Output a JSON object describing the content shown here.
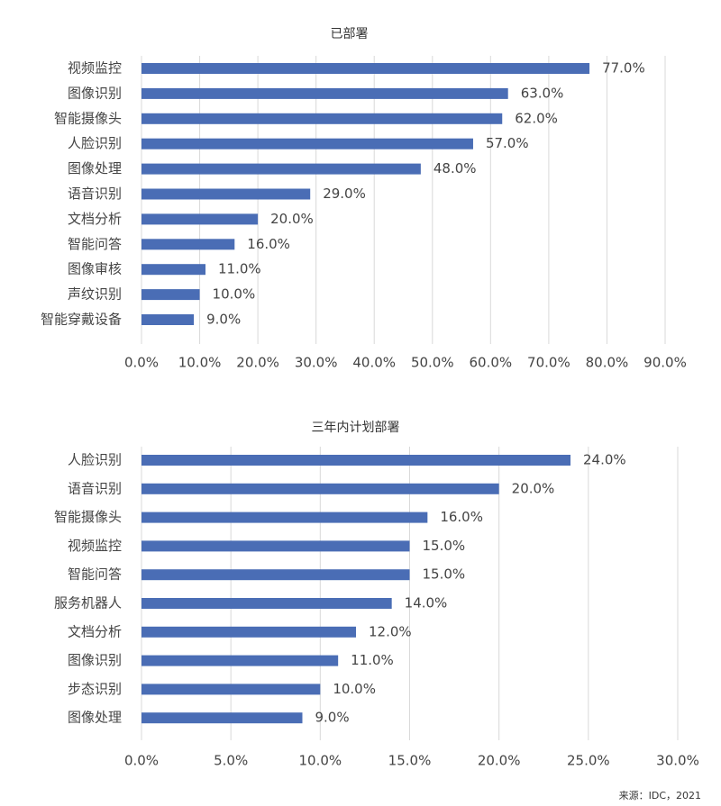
{
  "chart_data": [
    {
      "type": "bar",
      "orientation": "horizontal",
      "title": "已部署",
      "categories": [
        "视频监控",
        "图像识别",
        "智能摄像头",
        "人脸识别",
        "图像处理",
        "语音识别",
        "文档分析",
        "智能问答",
        "图像审核",
        "声纹识别",
        "智能穿戴设备"
      ],
      "values": [
        77,
        63,
        62,
        57,
        48,
        29,
        20,
        16,
        11,
        10,
        9
      ],
      "value_labels": [
        "77.0%",
        "63.0%",
        "62.0%",
        "57.0%",
        "48.0%",
        "29.0%",
        "20.0%",
        "16.0%",
        "11.0%",
        "10.0%",
        "9.0%"
      ],
      "color": "#4a6db5",
      "xlim": [
        0,
        90
      ],
      "xticks": [
        {
          "value": 0,
          "label": "0.0%"
        },
        {
          "value": 10,
          "label": "10.0%"
        },
        {
          "value": 20,
          "label": "20.0%"
        },
        {
          "value": 30,
          "label": "30.0%"
        },
        {
          "value": 40,
          "label": "40.0%"
        },
        {
          "value": 50,
          "label": "50.0%"
        },
        {
          "value": 60,
          "label": "60.0%"
        },
        {
          "value": 70,
          "label": "70.0%"
        },
        {
          "value": 80,
          "label": "80.0%"
        },
        {
          "value": 90,
          "label": "90.0%"
        }
      ],
      "grid": true
    },
    {
      "type": "bar",
      "orientation": "horizontal",
      "title": "三年内计划部署",
      "categories": [
        "人脸识别",
        "语音识别",
        "智能摄像头",
        "视频监控",
        "智能问答",
        "服务机器人",
        "文档分析",
        "图像识别",
        "步态识别",
        "图像处理"
      ],
      "values": [
        24,
        20,
        16,
        15,
        15,
        14,
        12,
        11,
        10,
        9
      ],
      "value_labels": [
        "24.0%",
        "20.0%",
        "16.0%",
        "15.0%",
        "15.0%",
        "14.0%",
        "12.0%",
        "11.0%",
        "10.0%",
        "9.0%"
      ],
      "color": "#4a6db5",
      "xlim": [
        0,
        30
      ],
      "xticks": [
        {
          "value": 0,
          "label": "0.0%"
        },
        {
          "value": 5,
          "label": "5.0%"
        },
        {
          "value": 10,
          "label": "10.0%"
        },
        {
          "value": 15,
          "label": "15.0%"
        },
        {
          "value": 20,
          "label": "20.0%"
        },
        {
          "value": 25,
          "label": "25.0%"
        },
        {
          "value": 30,
          "label": "30.0%"
        }
      ],
      "grid": true
    }
  ],
  "source": "来源：IDC，2021"
}
